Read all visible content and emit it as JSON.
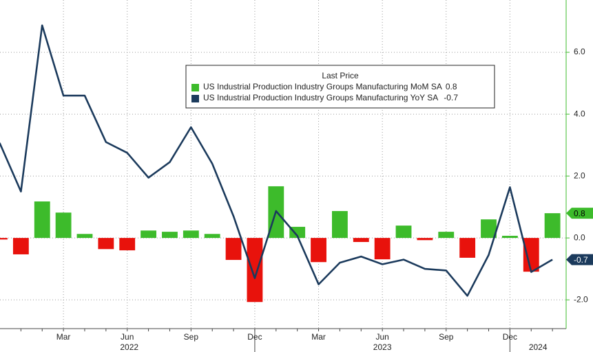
{
  "chart_data": {
    "type": "combo",
    "legend_title": "Last Price",
    "categories": [
      null,
      null,
      null,
      "Mar",
      null,
      null,
      "Jun",
      null,
      null,
      "Sep",
      null,
      null,
      "Dec",
      null,
      null,
      "Mar",
      null,
      null,
      "Jun",
      null,
      null,
      "Sep",
      null,
      null,
      "Dec",
      null,
      null
    ],
    "years": [
      "2022",
      "2023",
      "2024"
    ],
    "series": [
      {
        "name": "US Industrial Production Industry Groups Manufacturing MoM SA",
        "type": "bar",
        "color": "#3dbb2b",
        "negative_color": "#e8120c",
        "values": [
          -0.05,
          -0.53,
          1.18,
          0.82,
          0.13,
          -0.36,
          -0.4,
          0.24,
          0.2,
          0.24,
          0.13,
          -0.71,
          -2.07,
          1.67,
          0.36,
          -0.78,
          0.87,
          -0.13,
          -0.69,
          0.4,
          -0.07,
          0.2,
          -0.64,
          0.6,
          0.07,
          -1.09,
          0.8
        ]
      },
      {
        "name": "US Industrial Production Industry Groups Manufacturing YoY SA",
        "type": "line",
        "color": "#1b3a5c",
        "values": [
          3.07,
          1.5,
          6.87,
          4.6,
          4.6,
          3.1,
          2.75,
          1.95,
          2.45,
          3.58,
          2.4,
          0.7,
          -1.3,
          0.87,
          0.07,
          -1.5,
          -0.8,
          -0.6,
          -0.85,
          -0.7,
          -1.0,
          -1.05,
          -1.87,
          -0.55,
          1.64,
          -1.1,
          -0.7
        ]
      }
    ],
    "ylim": [
      -2.93,
      7.69
    ],
    "yticks": [
      {
        "value": -2,
        "label": "-2.0"
      },
      {
        "value": 0,
        "label": "0.0"
      },
      {
        "value": 2,
        "label": "2.0"
      },
      {
        "value": 4,
        "label": "4.0"
      },
      {
        "value": 6,
        "label": "6.0"
      }
    ],
    "grid": true
  }
}
